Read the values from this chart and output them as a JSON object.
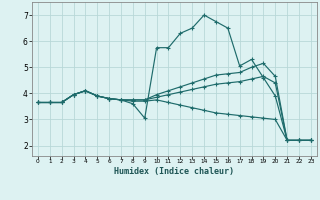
{
  "xlabel": "Humidex (Indice chaleur)",
  "bg_color": "#ddf2f2",
  "grid_color": "#b8d8d8",
  "line_color": "#1e6b6b",
  "xlim": [
    -0.5,
    23.5
  ],
  "ylim": [
    1.6,
    7.5
  ],
  "xticks": [
    0,
    1,
    2,
    3,
    4,
    5,
    6,
    7,
    8,
    9,
    10,
    11,
    12,
    13,
    14,
    15,
    16,
    17,
    18,
    19,
    20,
    21,
    22,
    23
  ],
  "yticks": [
    2,
    3,
    4,
    5,
    6,
    7
  ],
  "lines": [
    {
      "x": [
        0,
        1,
        2,
        3,
        4,
        5,
        6,
        7,
        8,
        9,
        10,
        11,
        12,
        13,
        14,
        15,
        16,
        17,
        18,
        19,
        20,
        21,
        22,
        23
      ],
      "y": [
        3.65,
        3.65,
        3.65,
        3.95,
        4.1,
        3.9,
        3.8,
        3.75,
        3.6,
        3.05,
        5.75,
        5.75,
        6.3,
        6.5,
        7.0,
        6.75,
        6.5,
        5.05,
        5.3,
        4.6,
        3.9,
        2.2,
        2.2,
        2.2
      ]
    },
    {
      "x": [
        0,
        1,
        2,
        3,
        4,
        5,
        6,
        7,
        8,
        9,
        10,
        11,
        12,
        13,
        14,
        15,
        16,
        17,
        18,
        19,
        20,
        21,
        22,
        23
      ],
      "y": [
        3.65,
        3.65,
        3.65,
        3.95,
        4.1,
        3.9,
        3.8,
        3.75,
        3.75,
        3.75,
        3.95,
        4.1,
        4.25,
        4.4,
        4.55,
        4.7,
        4.75,
        4.8,
        5.0,
        5.15,
        4.65,
        2.2,
        2.2,
        2.2
      ]
    },
    {
      "x": [
        0,
        1,
        2,
        3,
        4,
        5,
        6,
        7,
        8,
        9,
        10,
        11,
        12,
        13,
        14,
        15,
        16,
        17,
        18,
        19,
        20,
        21,
        22,
        23
      ],
      "y": [
        3.65,
        3.65,
        3.65,
        3.95,
        4.1,
        3.9,
        3.8,
        3.75,
        3.75,
        3.75,
        3.85,
        3.95,
        4.05,
        4.15,
        4.25,
        4.35,
        4.4,
        4.45,
        4.55,
        4.65,
        4.4,
        2.2,
        2.2,
        2.2
      ]
    },
    {
      "x": [
        0,
        1,
        2,
        3,
        4,
        5,
        6,
        7,
        8,
        9,
        10,
        11,
        12,
        13,
        14,
        15,
        16,
        17,
        18,
        19,
        20,
        21,
        22,
        23
      ],
      "y": [
        3.65,
        3.65,
        3.65,
        3.95,
        4.1,
        3.9,
        3.8,
        3.75,
        3.7,
        3.7,
        3.75,
        3.65,
        3.55,
        3.45,
        3.35,
        3.25,
        3.2,
        3.15,
        3.1,
        3.05,
        3.0,
        2.2,
        2.2,
        2.2
      ]
    }
  ]
}
